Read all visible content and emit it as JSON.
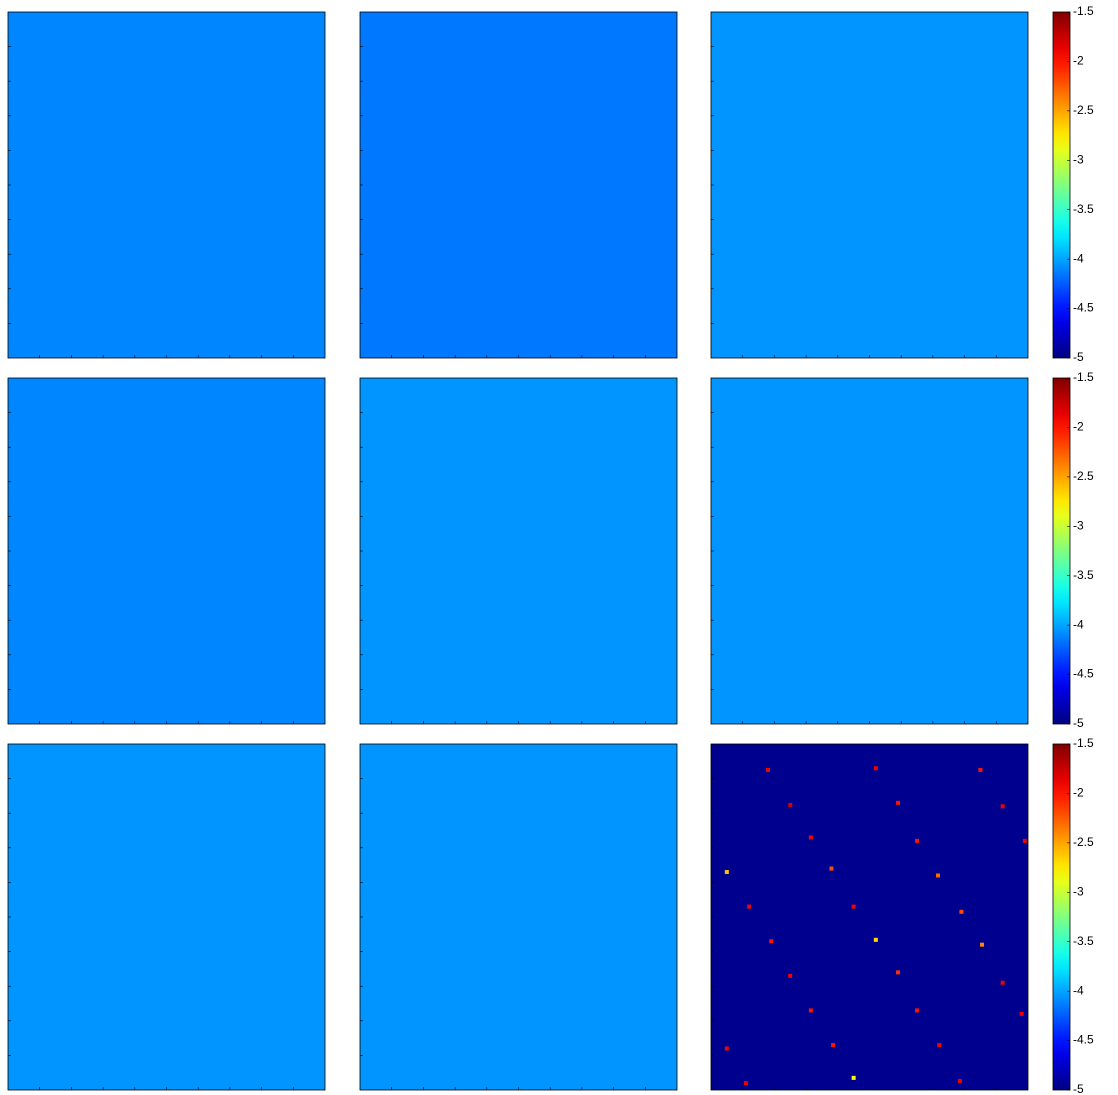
{
  "chart_data": {
    "type": "heatmap",
    "colormap": "jet",
    "clim": [
      -5,
      -1.5
    ],
    "cticks": [
      -1.5,
      -2,
      -2.5,
      -3,
      -3.5,
      -4,
      -4.5,
      -5
    ],
    "xlim": [
      0,
      100
    ],
    "ylim": [
      0,
      100
    ],
    "panels": [
      {
        "value": -4.1
      },
      {
        "value": -4.15
      },
      {
        "value": -4.05
      },
      {
        "value": -4.1
      },
      {
        "value": -4.05
      },
      {
        "value": -4.05
      },
      {
        "value": -4.05
      },
      {
        "value": -4.05
      },
      {
        "value": -4.95,
        "spots": [
          {
            "x": 18,
            "y": 7.5,
            "value": -1.9
          },
          {
            "x": 52,
            "y": 7,
            "value": -1.9
          },
          {
            "x": 85,
            "y": 7.5,
            "value": -2
          },
          {
            "x": 25,
            "y": 17.6,
            "value": -1.8
          },
          {
            "x": 59,
            "y": 17,
            "value": -2
          },
          {
            "x": 92,
            "y": 18,
            "value": -1.9
          },
          {
            "x": 31.5,
            "y": 27,
            "value": -1.9
          },
          {
            "x": 65,
            "y": 28,
            "value": -2
          },
          {
            "x": 99,
            "y": 28,
            "value": -1.9
          },
          {
            "x": 5,
            "y": 37,
            "value": -2.6
          },
          {
            "x": 38,
            "y": 36,
            "value": -2.2
          },
          {
            "x": 71.6,
            "y": 38,
            "value": -2.3
          },
          {
            "x": 12,
            "y": 47,
            "value": -1.9
          },
          {
            "x": 45,
            "y": 47,
            "value": -1.9
          },
          {
            "x": 79,
            "y": 48.5,
            "value": -2.2
          },
          {
            "x": 52,
            "y": 56.6,
            "value": -2.7
          },
          {
            "x": 19,
            "y": 57,
            "value": -2
          },
          {
            "x": 85.5,
            "y": 58,
            "value": -2.4
          },
          {
            "x": 25,
            "y": 67,
            "value": -1.9
          },
          {
            "x": 59,
            "y": 66,
            "value": -2.1
          },
          {
            "x": 92,
            "y": 69,
            "value": -1.9
          },
          {
            "x": 31.5,
            "y": 77,
            "value": -2
          },
          {
            "x": 65,
            "y": 77,
            "value": -2
          },
          {
            "x": 98,
            "y": 78,
            "value": -1.9
          },
          {
            "x": 5,
            "y": 88,
            "value": -1.9
          },
          {
            "x": 38.5,
            "y": 87,
            "value": -2
          },
          {
            "x": 72,
            "y": 87,
            "value": -1.9
          },
          {
            "x": 11,
            "y": 98,
            "value": -1.9
          },
          {
            "x": 45,
            "y": 96.5,
            "value": -2.8
          },
          {
            "x": 78.5,
            "y": 97.4,
            "value": -1.9
          }
        ]
      }
    ]
  }
}
